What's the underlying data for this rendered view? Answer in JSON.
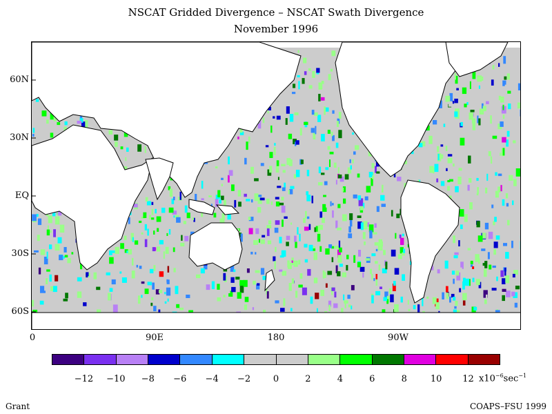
{
  "title": "NSCAT Gridded Divergence – NSCAT Swath Divergence",
  "subtitle": "November 1996",
  "lat_labels": [
    "60N",
    "30N",
    "EQ",
    "30S",
    "60S"
  ],
  "lon_labels": [
    "0",
    "90E",
    "180",
    "90W"
  ],
  "colorbar": {
    "colors": [
      "#3c0080",
      "#7a30f0",
      "#b880f5",
      "#0000cc",
      "#3388ff",
      "#00ffff",
      "#cccccc",
      "#cccccc",
      "#99ff88",
      "#00ff00",
      "#007700",
      "#e000e0",
      "#ff0000",
      "#990000"
    ],
    "ticks": [
      "−12",
      "−10",
      "−8",
      "−6",
      "−4",
      "−2",
      "0",
      "2",
      "4",
      "6",
      "8",
      "10",
      "12"
    ],
    "units_base": "x10",
    "units_exp": "−6",
    "units_tail": "sec",
    "units_tail_exp": "−1"
  },
  "credits": {
    "left": "Grant",
    "right": "COAPS–FSU 1999"
  }
}
